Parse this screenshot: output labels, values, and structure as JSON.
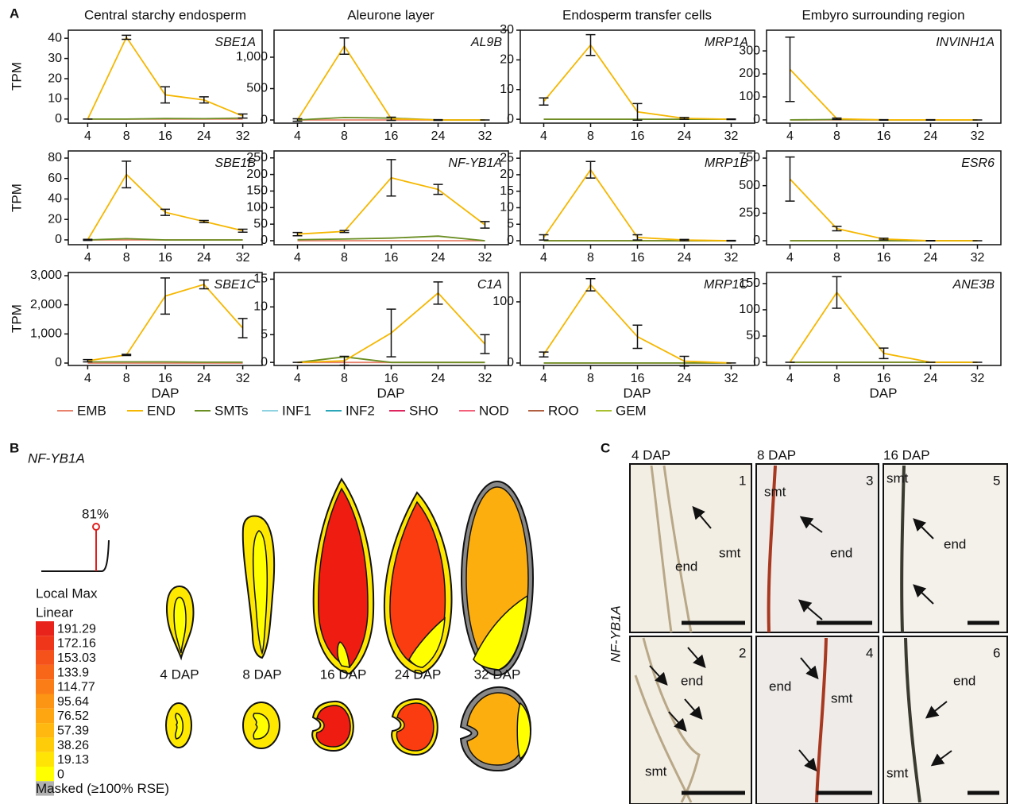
{
  "panel_a": {
    "letter": "A",
    "columns": [
      "Central starchy endosperm",
      "Aleurone layer",
      "Endosperm transfer cells",
      "Embyro surrounding region"
    ],
    "y_label": "TPM",
    "x_label": "DAP"
  },
  "chart_data": [
    {
      "type": "line",
      "title": "SBE1A",
      "categories": [
        "4",
        "8",
        "16",
        "24",
        "32"
      ],
      "ylim": [
        -2,
        44
      ],
      "yticks": [
        0,
        10,
        20,
        30,
        40
      ],
      "series": [
        {
          "name": "EMB",
          "color": "#e8826d",
          "values": [
            0,
            0,
            0,
            0,
            0
          ]
        },
        {
          "name": "SMTs",
          "color": "#6b8e23",
          "values": [
            0,
            0,
            0.3,
            0.2,
            0.5
          ]
        },
        {
          "name": "END",
          "color": "#f5b700",
          "values": [
            0,
            40.5,
            12,
            9.5,
            1.5
          ],
          "errors": [
            0,
            1,
            4,
            1.5,
            1
          ]
        }
      ]
    },
    {
      "type": "line",
      "title": "AL9B",
      "categories": [
        "4",
        "8",
        "16",
        "24",
        "32"
      ],
      "ylim": [
        -50,
        1430
      ],
      "yticks": [
        0,
        500,
        {
          "value": 1000,
          "label": "1,000"
        }
      ],
      "series": [
        {
          "name": "EMB",
          "color": "#e8826d",
          "values": [
            0,
            0,
            0,
            0,
            0
          ]
        },
        {
          "name": "SMTs",
          "color": "#6b8e23",
          "values": [
            0,
            40,
            30,
            0,
            0
          ]
        },
        {
          "name": "END",
          "color": "#f5b700",
          "values": [
            0,
            1177,
            20,
            0,
            0
          ],
          "errors": [
            20,
            130,
            25,
            5,
            0
          ]
        }
      ]
    },
    {
      "type": "line",
      "title": "MRP1A",
      "categories": [
        "4",
        "8",
        "16",
        "24",
        "32"
      ],
      "ylim": [
        -1.3,
        30
      ],
      "yticks": [
        0,
        10,
        20,
        30
      ],
      "series": [
        {
          "name": "EMB",
          "color": "#e8826d",
          "values": [
            0,
            0,
            0,
            0,
            0
          ]
        },
        {
          "name": "SMTs",
          "color": "#6b8e23",
          "values": [
            0,
            0,
            0,
            0,
            0
          ]
        },
        {
          "name": "END",
          "color": "#f5b700",
          "values": [
            6,
            25,
            2.5,
            0.3,
            0
          ],
          "errors": [
            1.2,
            3.5,
            2.8,
            0.3,
            0.1
          ]
        }
      ]
    },
    {
      "type": "line",
      "title": "INVINH1A",
      "categories": [
        "4",
        "8",
        "16",
        "24",
        "32"
      ],
      "ylim": [
        -14,
        390
      ],
      "yticks": [
        0,
        100,
        200,
        300
      ],
      "series": [
        {
          "name": "EMB",
          "color": "#e8826d",
          "values": [
            0,
            0,
            0,
            0,
            0
          ]
        },
        {
          "name": "SMTs",
          "color": "#6b8e23",
          "values": [
            0,
            2,
            0,
            0,
            0
          ]
        },
        {
          "name": "END",
          "color": "#f5b700",
          "values": [
            220,
            5,
            0,
            0,
            0
          ],
          "errors": [
            140,
            3,
            1,
            1,
            0
          ]
        }
      ]
    },
    {
      "type": "line",
      "title": "SBE1B",
      "categories": [
        "4",
        "8",
        "16",
        "24",
        "32"
      ],
      "ylim": [
        -4.7,
        87
      ],
      "yticks": [
        0,
        20,
        40,
        60,
        80
      ],
      "series": [
        {
          "name": "EMB",
          "color": "#e8826d",
          "values": [
            0,
            0,
            0,
            0,
            0
          ]
        },
        {
          "name": "SMTs",
          "color": "#6b8e23",
          "values": [
            0,
            1.2,
            0,
            0,
            0
          ]
        },
        {
          "name": "END",
          "color": "#f5b700",
          "values": [
            0,
            64,
            27,
            18,
            9
          ],
          "errors": [
            0.5,
            13,
            3,
            1,
            1.5
          ]
        }
      ]
    },
    {
      "type": "line",
      "title": "NF-YB1A",
      "categories": [
        "4",
        "8",
        "16",
        "24",
        "32"
      ],
      "ylim": [
        -12,
        271
      ],
      "yticks": [
        0,
        50,
        100,
        150,
        200,
        250
      ],
      "series": [
        {
          "name": "EMB",
          "color": "#e8826d",
          "values": [
            0,
            0,
            0,
            0,
            0
          ]
        },
        {
          "name": "SMTs",
          "color": "#6b8e23",
          "values": [
            3,
            5,
            8,
            14,
            0
          ]
        },
        {
          "name": "END",
          "color": "#f5b700",
          "values": [
            20,
            28,
            190,
            155,
            48
          ],
          "errors": [
            5,
            3,
            55,
            15,
            10
          ]
        }
      ]
    },
    {
      "type": "line",
      "title": "MRP1B",
      "categories": [
        "4",
        "8",
        "16",
        "24",
        "32"
      ],
      "ylim": [
        -1.2,
        27.2
      ],
      "yticks": [
        0,
        5,
        10,
        15,
        20,
        25
      ],
      "series": [
        {
          "name": "EMB",
          "color": "#e8826d",
          "values": [
            0,
            0,
            0,
            0,
            0
          ]
        },
        {
          "name": "SMTs",
          "color": "#6b8e23",
          "values": [
            0,
            0,
            0,
            0,
            0
          ]
        },
        {
          "name": "END",
          "color": "#f5b700",
          "values": [
            1,
            21.5,
            1,
            0.2,
            0
          ],
          "errors": [
            0.8,
            2.5,
            0.8,
            0.2,
            0.1
          ]
        }
      ]
    },
    {
      "type": "line",
      "title": "ESR6",
      "categories": [
        "4",
        "8",
        "16",
        "24",
        "32"
      ],
      "ylim": [
        -36,
        815
      ],
      "yticks": [
        0,
        250,
        500,
        750
      ],
      "series": [
        {
          "name": "EMB",
          "color": "#e8826d",
          "values": [
            0,
            0,
            0,
            0,
            0
          ]
        },
        {
          "name": "SMTs",
          "color": "#6b8e23",
          "values": [
            0,
            0,
            0,
            0,
            0
          ]
        },
        {
          "name": "END",
          "color": "#f5b700",
          "values": [
            560,
            110,
            15,
            0,
            0
          ],
          "errors": [
            200,
            20,
            8,
            2,
            0
          ]
        }
      ]
    },
    {
      "type": "line",
      "title": "SBE1C",
      "categories": [
        "4",
        "8",
        "16",
        "24",
        "32"
      ],
      "ylim": [
        -82,
        3109
      ],
      "yticks": [
        0,
        {
          "value": 1000,
          "label": "1,000"
        },
        {
          "value": 2000,
          "label": "2,000"
        },
        {
          "value": 3000,
          "label": "3,000"
        }
      ],
      "series": [
        {
          "name": "EMB",
          "color": "#e8826d",
          "values": [
            0,
            0,
            0,
            0,
            0
          ]
        },
        {
          "name": "SMTs",
          "color": "#6b8e23",
          "values": [
            40,
            40,
            40,
            30,
            30
          ]
        },
        {
          "name": "END",
          "color": "#f5b700",
          "values": [
            80,
            280,
            2300,
            2700,
            1200
          ],
          "errors": [
            40,
            20,
            620,
            150,
            330
          ]
        }
      ]
    },
    {
      "type": "line",
      "title": "C1A",
      "categories": [
        "4",
        "8",
        "16",
        "24",
        "32"
      ],
      "ylim": [
        -0.55,
        16.2
      ],
      "yticks": [
        0,
        5,
        10,
        15
      ],
      "series": [
        {
          "name": "EMB",
          "color": "#e8826d",
          "values": [
            0,
            0,
            0,
            0,
            0
          ]
        },
        {
          "name": "SMTs",
          "color": "#6b8e23",
          "values": [
            0,
            1,
            0,
            0,
            0
          ]
        },
        {
          "name": "END",
          "color": "#f5b700",
          "values": [
            0,
            0.3,
            5.3,
            12.5,
            3.3
          ],
          "errors": [
            0,
            0.8,
            4.3,
            2,
            1.7
          ]
        }
      ]
    },
    {
      "type": "line",
      "title": "MRP1C",
      "categories": [
        "4",
        "8",
        "16",
        "24",
        "32"
      ],
      "ylim": [
        -4,
        148
      ],
      "yticks": [
        0,
        100
      ],
      "series": [
        {
          "name": "EMB",
          "color": "#e8826d",
          "values": [
            0,
            0,
            0,
            0,
            0
          ]
        },
        {
          "name": "SMTs",
          "color": "#6b8e23",
          "values": [
            0,
            0,
            0,
            0,
            0
          ]
        },
        {
          "name": "END",
          "color": "#f5b700",
          "values": [
            14,
            128,
            43,
            3,
            0
          ],
          "errors": [
            4,
            10,
            19,
            8,
            0
          ]
        }
      ]
    },
    {
      "type": "line",
      "title": "ANE3B",
      "categories": [
        "4",
        "8",
        "16",
        "24",
        "32"
      ],
      "ylim": [
        -6,
        171
      ],
      "yticks": [
        0,
        50,
        100,
        150
      ],
      "series": [
        {
          "name": "EMB",
          "color": "#e8826d",
          "values": [
            0,
            0,
            0,
            0,
            0
          ]
        },
        {
          "name": "SMTs",
          "color": "#6b8e23",
          "values": [
            0,
            0,
            0,
            0,
            0
          ]
        },
        {
          "name": "END",
          "color": "#f5b700",
          "values": [
            0,
            133,
            17,
            0,
            0
          ],
          "errors": [
            0,
            30,
            10,
            0,
            0
          ]
        }
      ]
    }
  ],
  "legend": [
    {
      "name": "EMB",
      "color": "#e8826d"
    },
    {
      "name": "END",
      "color": "#f5b700"
    },
    {
      "name": "SMTs",
      "color": "#6b8e23"
    },
    {
      "name": "INF1",
      "color": "#8fd3e0"
    },
    {
      "name": "INF2",
      "color": "#2aa6b8"
    },
    {
      "name": "SHO",
      "color": "#e0245e"
    },
    {
      "name": "NOD",
      "color": "#f4607a"
    },
    {
      "name": "ROO",
      "color": "#b06040"
    },
    {
      "name": "GEM",
      "color": "#a8c030"
    }
  ],
  "panel_b": {
    "letter": "B",
    "gene": "NF-YB1A",
    "percent": "81%",
    "scale_title": "Local Max",
    "scale_type": "Linear",
    "scale": [
      {
        "label": "191.29",
        "color": "#e8231c"
      },
      {
        "label": "172.16",
        "color": "#f0361a"
      },
      {
        "label": "153.03",
        "color": "#f5511a"
      },
      {
        "label": "133.9",
        "color": "#f8661a"
      },
      {
        "label": "114.77",
        "color": "#fa7d18"
      },
      {
        "label": "95.64",
        "color": "#fc9414"
      },
      {
        "label": "76.52",
        "color": "#fda612"
      },
      {
        "label": "57.39",
        "color": "#feb80f"
      },
      {
        "label": "38.26",
        "color": "#ffcc0a"
      },
      {
        "label": "19.13",
        "color": "#ffe405"
      },
      {
        "label": "0",
        "color": "#ffff00"
      }
    ],
    "masked": {
      "label": "Masked (≥100% RSE)",
      "color": "#b0b0b0"
    },
    "stages": [
      "4 DAP",
      "8 DAP",
      "16 DAP",
      "24 DAP",
      "32 DAP"
    ]
  },
  "panel_c": {
    "letter": "C",
    "columns": [
      "4 DAP",
      "8 DAP",
      "16 DAP"
    ],
    "gene": "NF-YB1A",
    "numbers": [
      "1",
      "3",
      "5",
      "2",
      "4",
      "6"
    ],
    "end": "end",
    "smt": "smt"
  }
}
